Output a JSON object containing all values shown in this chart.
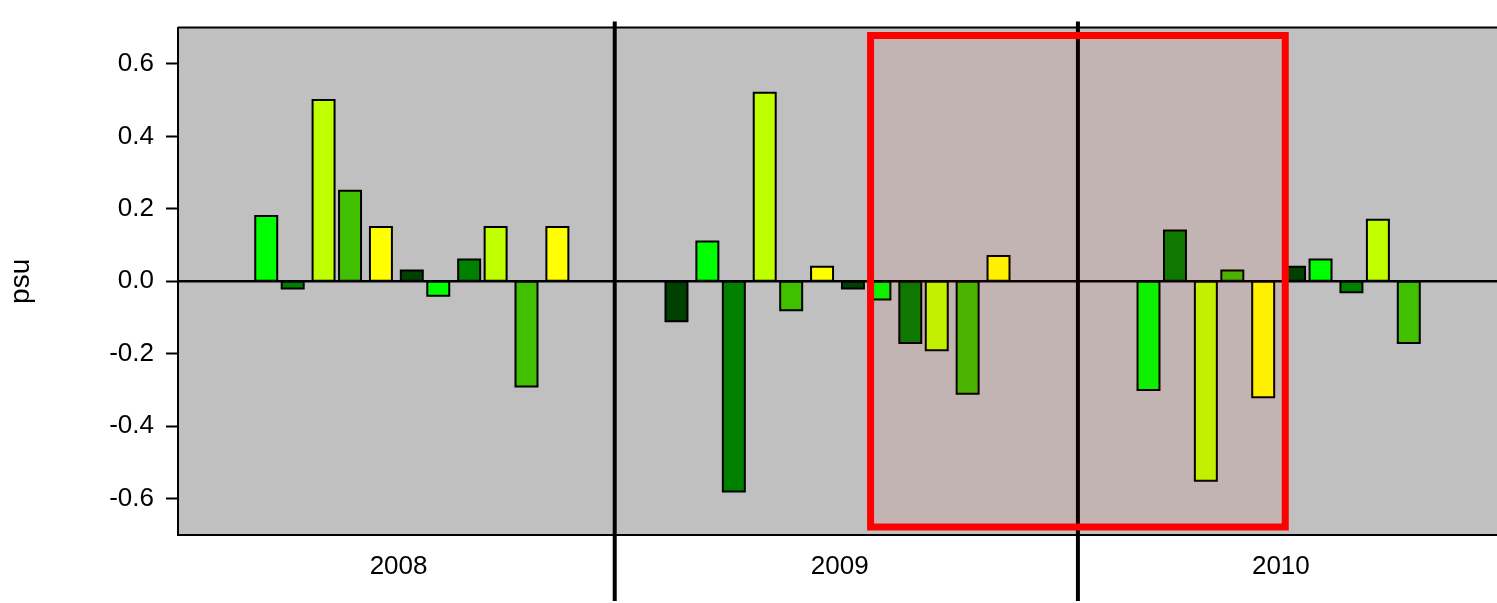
{
  "chart_data": {
    "type": "bar",
    "ylabel": "psu",
    "x": [
      2007.7,
      2007.76,
      2007.83,
      2007.89,
      2007.96,
      2008.03,
      2008.09,
      2008.16,
      2008.22,
      2008.29,
      2008.36,
      2008.63,
      2008.7,
      2008.76,
      2008.83,
      2008.89,
      2008.96,
      2009.03,
      2009.09,
      2009.16,
      2009.22,
      2009.29,
      2009.36,
      2009.7,
      2009.76,
      2009.83,
      2009.89,
      2009.96,
      2010.03,
      2010.09,
      2010.16,
      2010.22,
      2010.29
    ],
    "values": [
      0.18,
      -0.02,
      0.5,
      0.25,
      0.15,
      0.03,
      -0.04,
      0.06,
      0.15,
      -0.29,
      0.15,
      -0.11,
      0.11,
      -0.58,
      0.52,
      -0.08,
      0.04,
      -0.02,
      -0.05,
      -0.17,
      -0.19,
      -0.31,
      0.07,
      -0.3,
      0.14,
      -0.55,
      0.03,
      -0.32,
      0.04,
      0.06,
      -0.03,
      0.17,
      -0.17
    ],
    "colors": [
      "#00ff00",
      "#008000",
      "#c0ff00",
      "#40c000",
      "#ffff00",
      "#004000",
      "#00ff00",
      "#008000",
      "#c0ff00",
      "#40c000",
      "#ffff00",
      "#004000",
      "#00ff00",
      "#008000",
      "#c0ff00",
      "#40c000",
      "#ffff00",
      "#004000",
      "#00ff00",
      "#008000",
      "#c0ff00",
      "#40c000",
      "#ffff00",
      "#00ff00",
      "#008000",
      "#c0ff00",
      "#40c000",
      "#ffff00",
      "#004000",
      "#00ff00",
      "#008000",
      "#c0ff00",
      "#40c000"
    ],
    "xlim": [
      2007.5,
      2010.49
    ],
    "xticks": [
      2008,
      2009,
      2010
    ],
    "ylim": [
      -0.7,
      0.7
    ],
    "yticks": [
      {
        "value": -0.6,
        "label": "-0.6"
      },
      {
        "value": -0.4,
        "label": "-0.4"
      },
      {
        "value": -0.2,
        "label": "-0.2"
      },
      {
        "value": 0,
        "label": "0.0"
      },
      {
        "value": 0.2,
        "label": "0.2"
      },
      {
        "value": 0.4,
        "label": "0.4"
      },
      {
        "value": 0.6,
        "label": "0.6"
      }
    ],
    "ref_lines": [
      {
        "axis": "y",
        "value": 0,
        "color": "#000000"
      },
      {
        "axis": "x",
        "value": 2008.49,
        "color": "#000000"
      },
      {
        "axis": "x",
        "value": 2009.54,
        "color": "#000000"
      }
    ],
    "bands": [
      {
        "axis": "x",
        "from": 2009.07,
        "to": 2010.01,
        "color": "#ff0000"
      }
    ],
    "grid": false,
    "legend": false
  }
}
